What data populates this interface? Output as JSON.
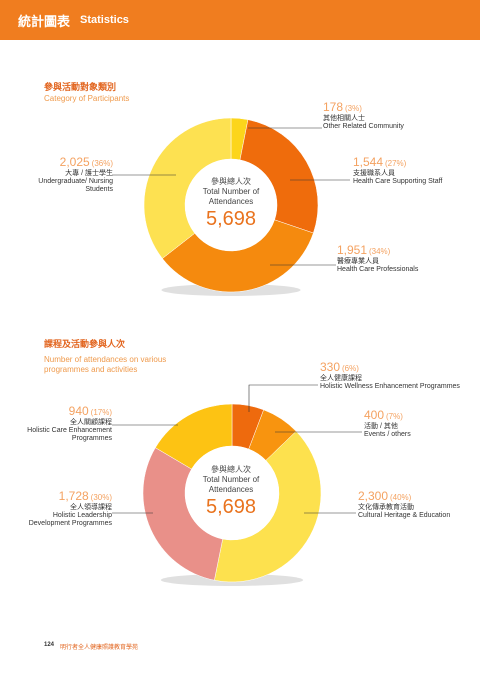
{
  "header": {
    "title_zh": "統計圖表",
    "title_en": "Statistics"
  },
  "sections": [
    {
      "title_zh": "參與活動對象類別",
      "title_en": "Category of Participants"
    },
    {
      "title_zh": "課程及活動參與人次",
      "title_en": "Number of attendances on various programmes and activities"
    }
  ],
  "footer": {
    "page": "124",
    "text": "明行者全人健康照護教育學苑"
  },
  "chart_data": [
    {
      "type": "pie",
      "title": "Category of Participants",
      "center": {
        "zh": "參與總人次",
        "en": "Total Number of Attendances",
        "total": "5,698"
      },
      "series": [
        {
          "value": 178,
          "num": "178",
          "pct": "(3%)",
          "zh": "其他相關人士",
          "en": "Other Related Community",
          "color": "#fcd51b"
        },
        {
          "value": 1544,
          "num": "1,544",
          "pct": "(27%)",
          "zh": "支援職系人員",
          "en": "Health Care Supporting Staff",
          "color": "#ef6c0c"
        },
        {
          "value": 1951,
          "num": "1,951",
          "pct": "(34%)",
          "zh": "醫療專業人員",
          "en": "Health Care Professionals",
          "color": "#f58a0e"
        },
        {
          "value": 2025,
          "num": "2,025",
          "pct": "(36%)",
          "zh": "大專 / 護士學生",
          "en": "Undergraduate/ Nursing Students",
          "color": "#fde151"
        }
      ]
    },
    {
      "type": "pie",
      "title": "Number of attendances on various programmes and activities",
      "center": {
        "zh": "參與總人次",
        "en": "Total Number of Attendances",
        "total": "5,698"
      },
      "series": [
        {
          "value": 330,
          "num": "330",
          "pct": "(6%)",
          "zh": "全人健康課程",
          "en": "Holistic Wellness Enhancement Programmes",
          "color": "#ee6a0d"
        },
        {
          "value": 400,
          "num": "400",
          "pct": "(7%)",
          "zh": "活動 / 其他",
          "en": "Events / others",
          "color": "#f8940f"
        },
        {
          "value": 2300,
          "num": "2,300",
          "pct": "(40%)",
          "zh": "文化傳承教育活動",
          "en": "Cultural Heritage & Education",
          "color": "#fde14e"
        },
        {
          "value": 1728,
          "num": "1,728",
          "pct": "(30%)",
          "zh": "全人領導課程",
          "en": "Holistic Leadership Development Programmes",
          "color": "#e99089"
        },
        {
          "value": 940,
          "num": "940",
          "pct": "(17%)",
          "zh": "全人關顧課程",
          "en": "Holistic Care Enhancement Programmes",
          "color": "#fdc313"
        }
      ]
    }
  ]
}
